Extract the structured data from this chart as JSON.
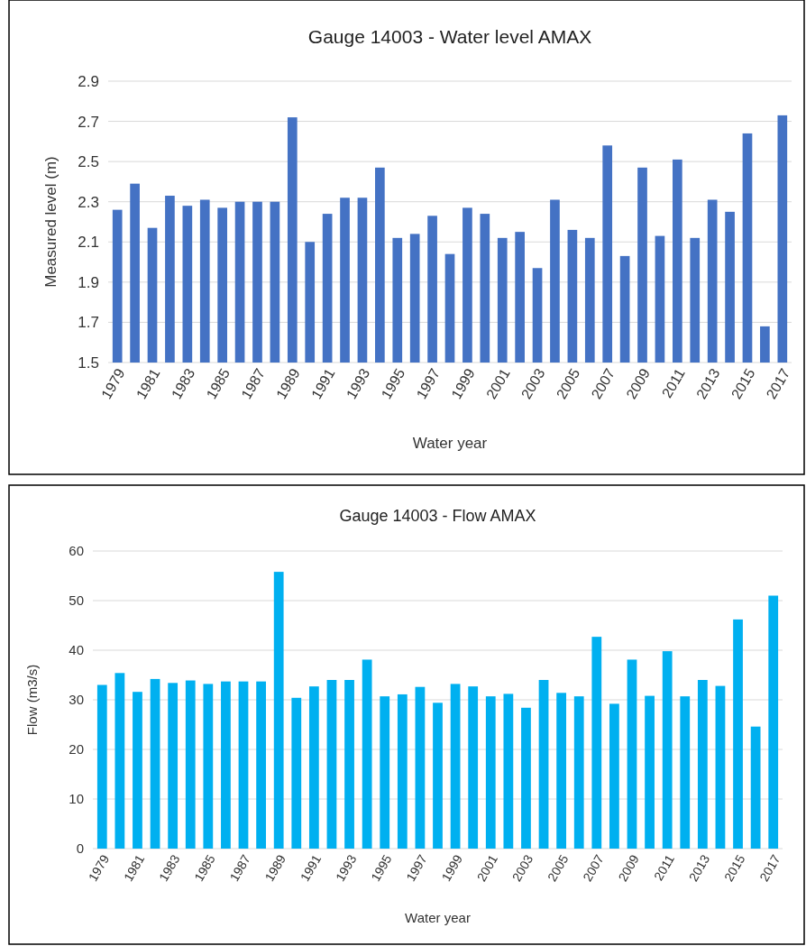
{
  "chart_data": [
    {
      "type": "bar",
      "title": "Gauge 14003 -  Water level AMAX",
      "xlabel": "Water year",
      "ylabel": "Measured level (m)",
      "categories": [
        "1979",
        null,
        "1981",
        null,
        "1983",
        null,
        "1985",
        null,
        "1987",
        null,
        "1989",
        null,
        "1991",
        null,
        "1993",
        null,
        "1995",
        null,
        "1997",
        null,
        "1999",
        null,
        "2001",
        null,
        "2003",
        null,
        "2005",
        null,
        "2007",
        null,
        "2009",
        null,
        "2011",
        null,
        "2013",
        null,
        "2015",
        null,
        "2017"
      ],
      "values": [
        2.26,
        2.39,
        2.17,
        2.33,
        2.28,
        2.31,
        2.27,
        2.3,
        2.3,
        2.3,
        2.72,
        2.1,
        2.24,
        2.32,
        2.32,
        2.47,
        2.12,
        2.14,
        2.23,
        2.04,
        2.27,
        2.24,
        2.12,
        2.15,
        1.97,
        2.31,
        2.16,
        2.12,
        2.58,
        2.03,
        2.47,
        2.13,
        2.51,
        2.12,
        2.31,
        2.25,
        2.64,
        1.68,
        2.73
      ],
      "color": "#4472c4",
      "ylim": [
        1.5,
        2.9
      ],
      "yticks": [
        1.5,
        1.7,
        1.9,
        2.1,
        2.3,
        2.5,
        2.7,
        2.9
      ],
      "grid": "y"
    },
    {
      "type": "bar",
      "title": "Gauge 14003 - Flow AMAX",
      "xlabel": "Water year",
      "ylabel": "Flow (m3/s)",
      "categories": [
        "1979",
        null,
        "1981",
        null,
        "1983",
        null,
        "1985",
        null,
        "1987",
        null,
        "1989",
        null,
        "1991",
        null,
        "1993",
        null,
        "1995",
        null,
        "1997",
        null,
        "1999",
        null,
        "2001",
        null,
        "2003",
        null,
        "2005",
        null,
        "2007",
        null,
        "2009",
        null,
        "2011",
        null,
        "2013",
        null,
        "2015",
        null,
        "2017"
      ],
      "values": [
        33.0,
        35.4,
        31.6,
        34.2,
        33.4,
        33.9,
        33.2,
        33.7,
        33.7,
        33.7,
        55.8,
        30.4,
        32.7,
        34.0,
        34.0,
        38.1,
        30.7,
        31.1,
        32.6,
        29.4,
        33.2,
        32.7,
        30.7,
        31.2,
        28.4,
        34.0,
        31.4,
        30.7,
        42.7,
        29.2,
        38.1,
        30.8,
        39.8,
        30.7,
        34.0,
        32.8,
        46.2,
        24.6,
        51.0
      ],
      "color": "#00b0f0",
      "ylim": [
        0,
        60
      ],
      "yticks": [
        0,
        10,
        20,
        30,
        40,
        50,
        60
      ],
      "grid": "y"
    }
  ]
}
